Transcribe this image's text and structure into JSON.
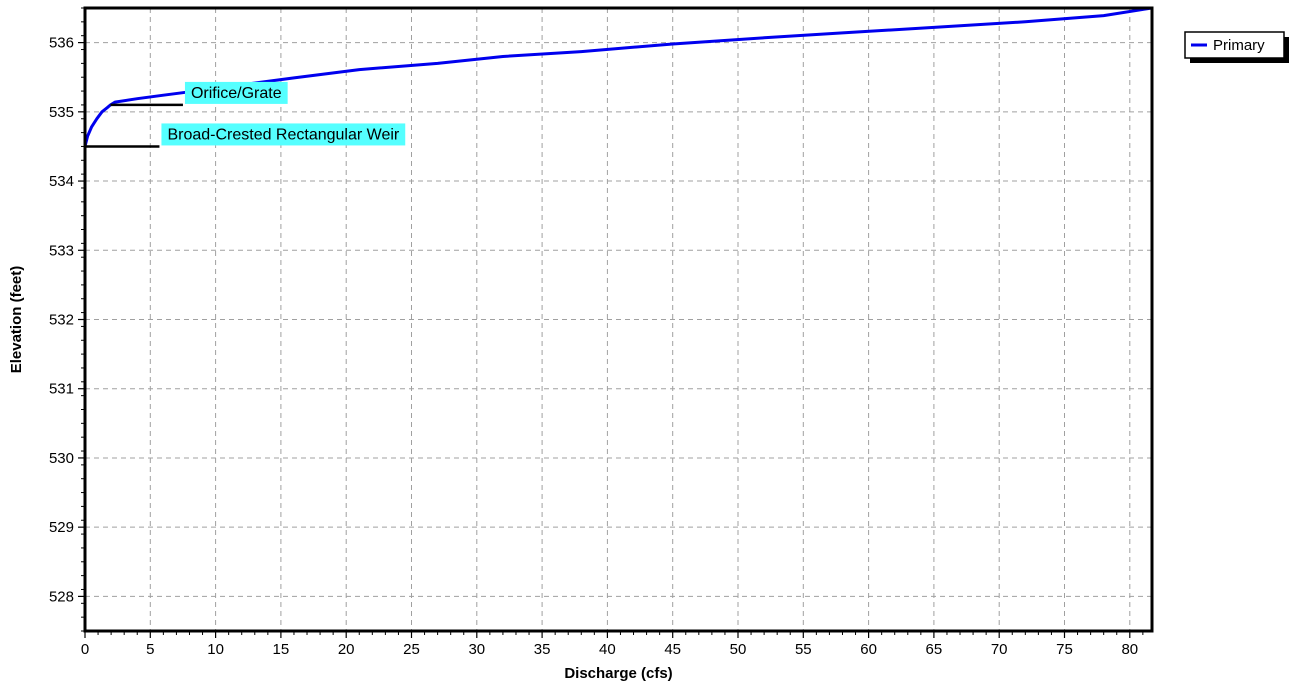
{
  "chart_data": {
    "type": "line",
    "title": "",
    "xlabel": "Discharge  (cfs)",
    "ylabel": "Elevation  (feet)",
    "xlim": [
      0,
      81.7
    ],
    "ylim": [
      527.5,
      536.5
    ],
    "x_ticks": [
      0,
      5,
      10,
      15,
      20,
      25,
      30,
      35,
      40,
      45,
      50,
      55,
      60,
      65,
      70,
      75,
      80
    ],
    "y_ticks": [
      528,
      529,
      530,
      531,
      532,
      533,
      534,
      535,
      536
    ],
    "grid": true,
    "legend_position": "top-right",
    "colors": {
      "series": "#0000ee",
      "annotation_bg": "#55ffff",
      "frame": "#000000",
      "grid": "#a0a0a0"
    },
    "series": [
      {
        "name": "Primary",
        "x": [
          0,
          0.2,
          0.5,
          0.9,
          1.3,
          1.7,
          1.95,
          2.3,
          4.0,
          6.0,
          8.0,
          12.0,
          16.0,
          21.0,
          27.0,
          32.0,
          38.0,
          45.0,
          52.0,
          58.0,
          65.0,
          72.0,
          78.0,
          81.7
        ],
        "y": [
          534.5,
          534.65,
          534.78,
          534.9,
          535.0,
          535.06,
          535.1,
          535.14,
          535.19,
          535.24,
          535.29,
          535.39,
          535.49,
          535.61,
          535.7,
          535.8,
          535.87,
          535.98,
          536.07,
          536.14,
          536.22,
          536.3,
          536.39,
          536.5
        ]
      }
    ],
    "annotations": [
      {
        "text": "Orifice/Grate",
        "x": 1.95,
        "y": 535.1,
        "line_to_x": 7.5
      },
      {
        "text": "Broad-Crested Rectangular Weir",
        "x": 0,
        "y": 534.5,
        "line_to_x": 5.7
      }
    ]
  }
}
